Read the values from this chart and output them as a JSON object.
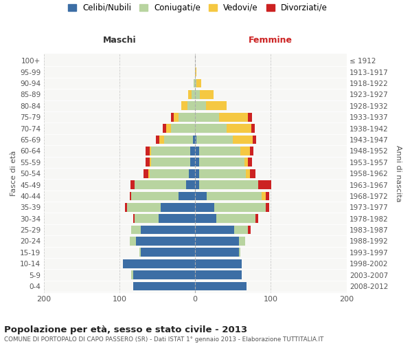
{
  "age_groups": [
    "100+",
    "95-99",
    "90-94",
    "85-89",
    "80-84",
    "75-79",
    "70-74",
    "65-69",
    "60-64",
    "55-59",
    "50-54",
    "45-49",
    "40-44",
    "35-39",
    "30-34",
    "25-29",
    "20-24",
    "15-19",
    "10-14",
    "5-9",
    "0-4"
  ],
  "birth_years": [
    "≤ 1912",
    "1913-1917",
    "1918-1922",
    "1923-1927",
    "1928-1932",
    "1933-1937",
    "1938-1942",
    "1943-1947",
    "1948-1952",
    "1953-1957",
    "1958-1962",
    "1963-1967",
    "1968-1972",
    "1973-1977",
    "1978-1982",
    "1983-1987",
    "1988-1992",
    "1993-1997",
    "1998-2002",
    "2003-2007",
    "2008-2012"
  ],
  "maschi_celibi": [
    0,
    0,
    0,
    0,
    0,
    0,
    0,
    3,
    6,
    6,
    8,
    12,
    22,
    45,
    48,
    72,
    78,
    72,
    95,
    82,
    82
  ],
  "maschi_coniugati": [
    0,
    0,
    2,
    5,
    10,
    22,
    32,
    38,
    52,
    52,
    52,
    68,
    62,
    45,
    32,
    12,
    8,
    2,
    0,
    2,
    0
  ],
  "maschi_vedovi": [
    0,
    0,
    0,
    4,
    8,
    6,
    6,
    6,
    2,
    2,
    2,
    0,
    0,
    0,
    0,
    0,
    0,
    0,
    0,
    0,
    0
  ],
  "maschi_divorziati": [
    0,
    0,
    0,
    0,
    0,
    4,
    5,
    5,
    5,
    5,
    6,
    5,
    2,
    3,
    2,
    0,
    0,
    0,
    0,
    0,
    0
  ],
  "femmine_nubili": [
    0,
    0,
    0,
    0,
    0,
    0,
    0,
    2,
    5,
    5,
    5,
    5,
    15,
    25,
    28,
    52,
    58,
    58,
    62,
    62,
    68
  ],
  "femmine_coniugate": [
    0,
    0,
    2,
    6,
    14,
    32,
    42,
    48,
    55,
    60,
    62,
    78,
    73,
    68,
    52,
    18,
    8,
    2,
    0,
    0,
    0
  ],
  "femmine_vedove": [
    0,
    2,
    6,
    18,
    28,
    38,
    32,
    26,
    12,
    5,
    5,
    0,
    5,
    0,
    0,
    0,
    0,
    0,
    0,
    0,
    0
  ],
  "femmine_divorziate": [
    0,
    0,
    0,
    0,
    0,
    5,
    5,
    5,
    5,
    5,
    8,
    18,
    5,
    5,
    3,
    3,
    0,
    0,
    0,
    0,
    0
  ],
  "colors_celibi": "#3c6ea5",
  "colors_coniugati": "#b8d4a0",
  "colors_vedovi": "#f5c842",
  "colors_divorziati": "#cc2222",
  "title": "Popolazione per età, sesso e stato civile - 2013",
  "subtitle": "COMUNE DI PORTOPALO DI CAPO PASSERO (SR) - Dati ISTAT 1° gennaio 2013 - Elaborazione TUTTITALIA.IT",
  "legend_labels": [
    "Celibi/Nubili",
    "Coniugati/e",
    "Vedovi/e",
    "Divorziati/e"
  ],
  "xlabel_left": "Maschi",
  "xlabel_right": "Femmine",
  "ylabel_left": "Fasce di età",
  "ylabel_right": "Anni di nascita",
  "xlim": 200,
  "bg_color": "#ffffff",
  "plot_bg": "#f7f7f5"
}
